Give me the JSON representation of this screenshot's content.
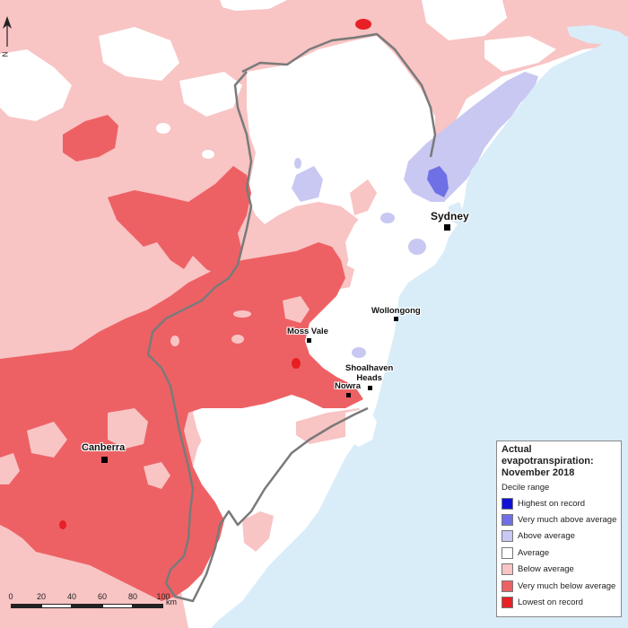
{
  "colors": {
    "ocean": "#d9edf9",
    "land_average": "#ffffff",
    "below_average": "#f8c4c4",
    "very_much_below_average": "#ed6164",
    "lowest_on_record": "#e81f24",
    "above_average": "#c8c8f2",
    "very_much_above_average": "#7070e6",
    "highest_on_record": "#1010d8",
    "state_border": "#7a7a7a"
  },
  "legend": {
    "title": "Actual evapotranspiration: November 2018",
    "subtitle": "Decile range",
    "items": [
      {
        "label": "Highest on record",
        "color": "#1010d8"
      },
      {
        "label": "Very much above average",
        "color": "#7070e6"
      },
      {
        "label": "Above average",
        "color": "#c8c8f2"
      },
      {
        "label": "Average",
        "color": "#ffffff"
      },
      {
        "label": "Below average",
        "color": "#f8c4c4"
      },
      {
        "label": "Very much below average",
        "color": "#ed6164"
      },
      {
        "label": "Lowest on record",
        "color": "#e81f24"
      }
    ]
  },
  "cities": [
    {
      "name": "Sydney",
      "label": "Sydney"
    },
    {
      "name": "Wollongong",
      "label": "Wollongong"
    },
    {
      "name": "Moss Vale",
      "label": "Moss Vale"
    },
    {
      "name": "Shoalhaven Heads",
      "label": "Shoalhaven\nHeads"
    },
    {
      "name": "Nowra",
      "label": "Nowra"
    },
    {
      "name": "Canberra",
      "label": "Canberra"
    }
  ],
  "scale_bar": {
    "ticks": [
      "0",
      "20",
      "40",
      "60",
      "80",
      "100"
    ],
    "unit": "km"
  },
  "north_arrow": {
    "label": "N",
    "icon": "north-arrow-icon"
  }
}
